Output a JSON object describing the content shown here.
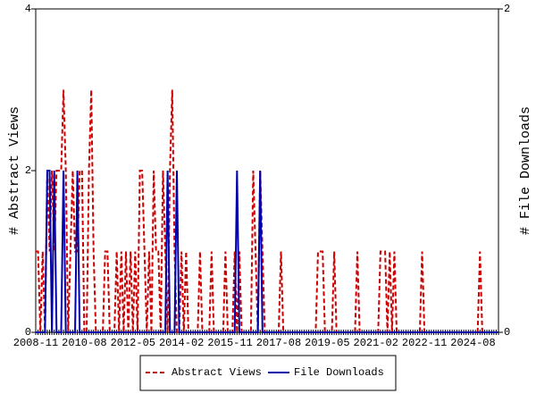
{
  "chart_data": {
    "type": "line",
    "ylabel": "# Abstract Views",
    "y2label": "# File Downloads",
    "categories": [
      "2008-11",
      null,
      null,
      null,
      null,
      null,
      null,
      null,
      null,
      null,
      null,
      null,
      null,
      null,
      null,
      null,
      null,
      null,
      null,
      null,
      null,
      "2010-08",
      null,
      null,
      null,
      null,
      null,
      null,
      null,
      null,
      null,
      null,
      null,
      null,
      null,
      null,
      null,
      null,
      null,
      null,
      null,
      null,
      "2012-05",
      null,
      null,
      null,
      null,
      null,
      null,
      null,
      null,
      null,
      null,
      null,
      null,
      null,
      null,
      null,
      null,
      null,
      null,
      null,
      null,
      "2014-02",
      null,
      null,
      null,
      null,
      null,
      null,
      null,
      null,
      null,
      null,
      null,
      null,
      null,
      null,
      null,
      null,
      null,
      null,
      null,
      null,
      "2015-11",
      null,
      null,
      null,
      null,
      null,
      null,
      null,
      null,
      null,
      null,
      null,
      null,
      null,
      null,
      null,
      null,
      null,
      null,
      null,
      null,
      "2017-08",
      null,
      null,
      null,
      null,
      null,
      null,
      null,
      null,
      null,
      null,
      null,
      null,
      null,
      null,
      null,
      null,
      null,
      null,
      null,
      null,
      "2019-05",
      null,
      null,
      null,
      null,
      null,
      null,
      null,
      null,
      null,
      null,
      null,
      null,
      null,
      null,
      null,
      null,
      null,
      null,
      null,
      null,
      "2021-02",
      null,
      null,
      null,
      null,
      null,
      null,
      null,
      null,
      null,
      null,
      null,
      null,
      null,
      null,
      null,
      null,
      null,
      null,
      null,
      null,
      "2022-11",
      null,
      null,
      null,
      null,
      null,
      null,
      null,
      null,
      null,
      null,
      null,
      null,
      null,
      null,
      null,
      null,
      null,
      null,
      null,
      null,
      "2024-08",
      null,
      null,
      null,
      null,
      null,
      null,
      null,
      null,
      null,
      null,
      null
    ],
    "series": [
      {
        "name": "Abstract Views",
        "color": "#cc0000",
        "dash": true,
        "values": [
          1,
          1,
          0,
          1,
          0,
          2,
          1,
          2,
          1,
          2,
          2,
          2,
          3,
          2,
          0,
          1,
          2,
          1,
          1,
          2,
          2,
          0,
          0,
          2,
          3,
          1,
          0,
          0,
          0,
          0,
          1,
          1,
          0,
          0,
          0,
          1,
          0,
          1,
          0,
          1,
          0,
          1,
          0,
          1,
          0,
          2,
          2,
          1,
          0,
          1,
          0,
          2,
          1,
          1,
          0,
          2,
          1,
          0,
          2,
          3,
          1,
          0,
          0,
          1,
          0,
          1,
          0,
          0,
          0,
          0,
          0,
          1,
          0,
          0,
          0,
          0,
          1,
          0,
          0,
          0,
          0,
          0,
          1,
          0,
          0,
          0,
          1,
          0,
          1,
          0,
          0,
          0,
          0,
          0,
          2,
          1,
          0,
          2,
          1,
          0,
          0,
          0,
          0,
          0,
          0,
          0,
          1,
          0,
          0,
          0,
          0,
          0,
          0,
          0,
          0,
          0,
          0,
          0,
          0,
          0,
          0,
          0,
          1,
          1,
          1,
          0,
          0,
          0,
          0,
          1,
          0,
          0,
          0,
          0,
          0,
          0,
          0,
          0,
          0,
          1,
          0,
          0,
          0,
          0,
          0,
          0,
          0,
          0,
          0,
          1,
          1,
          1,
          0,
          1,
          0,
          1,
          0,
          0,
          0,
          0,
          0,
          0,
          0,
          0,
          0,
          0,
          0,
          1,
          0,
          0,
          0,
          0,
          0,
          0,
          0,
          0,
          0,
          0,
          0,
          0,
          0,
          0,
          0,
          0,
          0,
          0,
          0,
          0,
          0,
          0,
          0,
          0,
          1,
          0,
          0,
          0,
          0,
          0,
          0,
          0,
          0
        ]
      },
      {
        "name": "File Downloads",
        "color": "#0000aa",
        "axis": "y2",
        "values": [
          0,
          0,
          0,
          0,
          0,
          1,
          1,
          0,
          1,
          0,
          0,
          0,
          1,
          0,
          0,
          0,
          0,
          0,
          1,
          0,
          0,
          0,
          0,
          0,
          0,
          0,
          0,
          0,
          0,
          0,
          0,
          0,
          0,
          0,
          0,
          0,
          0,
          0,
          0,
          0,
          0,
          0,
          0,
          0,
          0,
          0,
          0,
          0,
          0,
          0,
          0,
          0,
          0,
          0,
          0,
          0,
          0,
          1,
          0,
          0,
          0,
          1,
          0,
          0,
          0,
          0,
          0,
          0,
          0,
          0,
          0,
          0,
          0,
          0,
          0,
          0,
          0,
          0,
          0,
          0,
          0,
          0,
          0,
          0,
          0,
          0,
          0,
          1,
          0,
          0,
          0,
          0,
          0,
          0,
          0,
          0,
          0,
          1,
          0,
          0,
          0,
          0,
          0,
          0,
          0,
          0,
          0,
          0,
          0,
          0,
          0,
          0,
          0,
          0,
          0,
          0,
          0,
          0,
          0,
          0,
          0,
          0,
          0,
          0,
          0,
          0,
          0,
          0,
          0,
          0,
          0,
          0,
          0,
          0,
          0,
          0,
          0,
          0,
          0,
          0,
          0,
          0,
          0,
          0,
          0,
          0,
          0,
          0,
          0,
          0,
          0,
          0,
          0,
          0,
          0,
          0,
          0,
          0,
          0,
          0,
          0,
          0,
          0,
          0,
          0,
          0,
          0,
          0,
          0,
          0,
          0,
          0,
          0,
          0,
          0,
          0,
          0,
          0,
          0,
          0,
          0,
          0,
          0,
          0,
          0,
          0,
          0,
          0,
          0,
          0,
          0,
          0,
          0,
          0,
          0,
          0,
          0,
          0,
          0,
          0,
          0
        ]
      }
    ],
    "ylim": [
      0,
      4
    ],
    "yticks": [
      0,
      2,
      4
    ],
    "y2lim": [
      0,
      2
    ],
    "y2ticks": [
      0,
      2
    ],
    "legend": "bottom"
  }
}
